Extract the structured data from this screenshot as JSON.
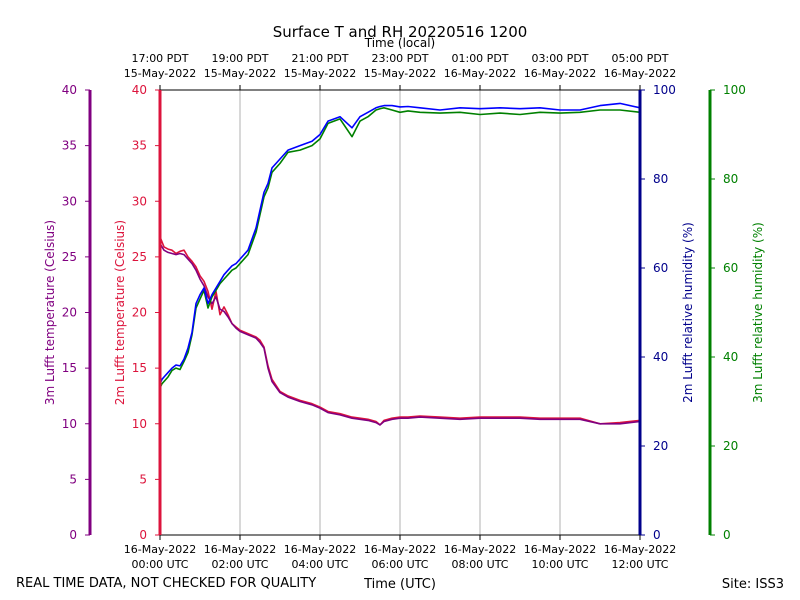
{
  "chart_data": {
    "type": "line",
    "title": "Surface T and RH 20220516 1200",
    "top_axis_title": "Time (local)",
    "xlabel": "Time (UTC)",
    "footer_left": "REAL TIME DATA, NOT CHECKED FOR QUALITY",
    "footer_right": "Site: ISS3",
    "colors": {
      "t3m": "#800080",
      "t2m": "#dc143c",
      "rh2m": "#0000ff",
      "rh3m": "#008000",
      "axis_t3m": "#800080",
      "axis_t2m": "#dc143c",
      "axis_rh2m": "#00008b",
      "axis_rh3m": "#008000",
      "grid": "#b0b0b0"
    },
    "x_range_hours": [
      0,
      12
    ],
    "bottom_ticks": [
      {
        "x": 0,
        "line1": "16-May-2022",
        "line2": "00:00 UTC"
      },
      {
        "x": 2,
        "line1": "16-May-2022",
        "line2": "02:00 UTC"
      },
      {
        "x": 4,
        "line1": "16-May-2022",
        "line2": "04:00 UTC"
      },
      {
        "x": 6,
        "line1": "16-May-2022",
        "line2": "06:00 UTC"
      },
      {
        "x": 8,
        "line1": "16-May-2022",
        "line2": "08:00 UTC"
      },
      {
        "x": 10,
        "line1": "16-May-2022",
        "line2": "10:00 UTC"
      },
      {
        "x": 12,
        "line1": "16-May-2022",
        "line2": "12:00 UTC"
      }
    ],
    "top_ticks": [
      {
        "x": 0,
        "line1": "17:00 PDT",
        "line2": "15-May-2022"
      },
      {
        "x": 2,
        "line1": "19:00 PDT",
        "line2": "15-May-2022"
      },
      {
        "x": 4,
        "line1": "21:00 PDT",
        "line2": "15-May-2022"
      },
      {
        "x": 6,
        "line1": "23:00 PDT",
        "line2": "15-May-2022"
      },
      {
        "x": 8,
        "line1": "01:00 PDT",
        "line2": "16-May-2022"
      },
      {
        "x": 10,
        "line1": "03:00 PDT",
        "line2": "16-May-2022"
      },
      {
        "x": 12,
        "line1": "05:00 PDT",
        "line2": "16-May-2022"
      }
    ],
    "axes": {
      "t3m": {
        "label": "3m Lufft temperature (Celsius)",
        "ylim": [
          0,
          40
        ],
        "ticks": [
          "0",
          "5",
          "10",
          "15",
          "20",
          "25",
          "30",
          "35",
          "40"
        ]
      },
      "t2m": {
        "label": "2m Lufft temperature (Celsius)",
        "ylim": [
          0,
          40
        ],
        "ticks": [
          "0",
          "5",
          "10",
          "15",
          "20",
          "25",
          "30",
          "35",
          "40"
        ]
      },
      "rh2m": {
        "label": "2m Lufft relative humidity (%)",
        "ylim": [
          0,
          100
        ],
        "ticks": [
          "0",
          "20",
          "40",
          "60",
          "80",
          "100"
        ]
      },
      "rh3m": {
        "label": "3m Lufft relative humidity (%)",
        "ylim": [
          0,
          100
        ],
        "ticks": [
          "0",
          "20",
          "40",
          "60",
          "80",
          "100"
        ]
      }
    },
    "series": [
      {
        "key": "t2m",
        "name": "2m Lufft temperature",
        "axis": "t2m",
        "x": [
          0,
          0.1,
          0.2,
          0.3,
          0.4,
          0.5,
          0.6,
          0.7,
          0.8,
          0.9,
          1.0,
          1.1,
          1.2,
          1.3,
          1.4,
          1.5,
          1.6,
          1.7,
          1.8,
          1.9,
          2.0,
          2.2,
          2.4,
          2.5,
          2.6,
          2.7,
          2.8,
          3.0,
          3.2,
          3.5,
          3.8,
          4.0,
          4.2,
          4.5,
          4.8,
          5.0,
          5.2,
          5.4,
          5.5,
          5.6,
          5.8,
          6.0,
          6.2,
          6.5,
          7.0,
          7.5,
          8.0,
          8.5,
          9.0,
          9.5,
          10.0,
          10.5,
          11.0,
          11.5,
          12.0
        ],
        "y": [
          26.8,
          25.9,
          25.7,
          25.6,
          25.3,
          25.5,
          25.6,
          25.0,
          24.6,
          24.1,
          23.3,
          22.8,
          21.9,
          20.3,
          21.9,
          19.8,
          20.5,
          19.8,
          19.0,
          18.7,
          18.4,
          18.1,
          17.8,
          17.5,
          16.9,
          15.2,
          14.0,
          12.9,
          12.5,
          12.1,
          11.8,
          11.5,
          11.1,
          10.9,
          10.6,
          10.5,
          10.4,
          10.2,
          9.9,
          10.3,
          10.5,
          10.6,
          10.6,
          10.7,
          10.6,
          10.5,
          10.6,
          10.6,
          10.6,
          10.5,
          10.5,
          10.5,
          10.0,
          10.1,
          10.3
        ]
      },
      {
        "key": "t3m",
        "name": "3m Lufft temperature",
        "axis": "t3m",
        "x": [
          0,
          0.1,
          0.2,
          0.3,
          0.4,
          0.5,
          0.6,
          0.7,
          0.8,
          0.9,
          1.0,
          1.1,
          1.2,
          1.3,
          1.4,
          1.5,
          1.6,
          1.7,
          1.8,
          1.9,
          2.0,
          2.2,
          2.4,
          2.5,
          2.6,
          2.7,
          2.8,
          3.0,
          3.2,
          3.5,
          3.8,
          4.0,
          4.2,
          4.5,
          4.8,
          5.0,
          5.2,
          5.4,
          5.5,
          5.6,
          5.8,
          6.0,
          6.2,
          6.5,
          7.0,
          7.5,
          8.0,
          8.5,
          9.0,
          9.5,
          10.0,
          10.5,
          11.0,
          11.5,
          12.0
        ],
        "y": [
          26.2,
          25.6,
          25.4,
          25.3,
          25.2,
          25.3,
          25.2,
          24.8,
          24.4,
          23.8,
          23.0,
          22.4,
          21.4,
          20.8,
          21.4,
          20.3,
          20.1,
          19.6,
          19.0,
          18.6,
          18.3,
          18.0,
          17.7,
          17.3,
          16.8,
          15.0,
          13.8,
          12.8,
          12.4,
          12.0,
          11.7,
          11.4,
          11.0,
          10.8,
          10.5,
          10.4,
          10.3,
          10.1,
          9.9,
          10.2,
          10.4,
          10.5,
          10.5,
          10.6,
          10.5,
          10.4,
          10.5,
          10.5,
          10.5,
          10.4,
          10.4,
          10.4,
          10.0,
          10.0,
          10.2
        ]
      },
      {
        "key": "rh3m",
        "name": "3m Lufft relative humidity",
        "axis": "rh3m",
        "x": [
          0,
          0.05,
          0.1,
          0.2,
          0.3,
          0.4,
          0.5,
          0.6,
          0.7,
          0.8,
          0.9,
          1.0,
          1.1,
          1.2,
          1.3,
          1.4,
          1.5,
          1.6,
          1.7,
          1.8,
          1.9,
          2.0,
          2.2,
          2.4,
          2.5,
          2.6,
          2.7,
          2.8,
          3.0,
          3.2,
          3.5,
          3.8,
          4.0,
          4.2,
          4.5,
          4.8,
          5.0,
          5.2,
          5.4,
          5.5,
          5.6,
          5.8,
          6.0,
          6.2,
          6.5,
          7.0,
          7.5,
          8.0,
          8.5,
          9.0,
          9.5,
          10.0,
          10.5,
          11.0,
          11.5,
          12.0
        ],
        "y": [
          33.0,
          34.0,
          34.5,
          35.5,
          37.0,
          37.5,
          37.2,
          39.0,
          41.0,
          45.0,
          51.0,
          53.0,
          55.0,
          51.0,
          53.5,
          55.0,
          56.5,
          57.5,
          58.5,
          59.5,
          60.0,
          61.0,
          63.0,
          68.0,
          72.0,
          76.0,
          78.0,
          81.5,
          83.5,
          86.0,
          86.5,
          87.5,
          89.0,
          92.5,
          93.5,
          89.5,
          93.0,
          94.0,
          95.5,
          95.8,
          96.0,
          95.5,
          95.0,
          95.3,
          95.0,
          94.8,
          95.0,
          94.5,
          94.8,
          94.5,
          95.0,
          94.8,
          95.0,
          95.5,
          95.5,
          95.0
        ]
      },
      {
        "key": "rh2m",
        "name": "2m Lufft relative humidity",
        "axis": "rh2m",
        "x": [
          0,
          0.05,
          0.1,
          0.2,
          0.3,
          0.4,
          0.5,
          0.6,
          0.7,
          0.8,
          0.9,
          1.0,
          1.1,
          1.2,
          1.3,
          1.4,
          1.5,
          1.6,
          1.7,
          1.8,
          1.9,
          2.0,
          2.2,
          2.4,
          2.5,
          2.6,
          2.7,
          2.8,
          3.0,
          3.2,
          3.5,
          3.8,
          4.0,
          4.2,
          4.5,
          4.8,
          5.0,
          5.2,
          5.4,
          5.5,
          5.6,
          5.8,
          6.0,
          6.2,
          6.5,
          7.0,
          7.5,
          8.0,
          8.5,
          9.0,
          9.5,
          10.0,
          10.5,
          11.0,
          11.5,
          12.0
        ],
        "y": [
          34.0,
          35.0,
          35.5,
          36.5,
          37.5,
          38.2,
          38.0,
          39.5,
          42.0,
          45.5,
          52.0,
          54.0,
          55.5,
          52.0,
          54.0,
          55.5,
          57.0,
          58.5,
          59.5,
          60.5,
          61.0,
          62.0,
          64.0,
          69.0,
          73.0,
          77.0,
          79.0,
          82.5,
          84.5,
          86.5,
          87.5,
          88.5,
          90.0,
          93.0,
          94.0,
          91.5,
          94.0,
          95.0,
          96.0,
          96.3,
          96.5,
          96.5,
          96.2,
          96.3,
          96.0,
          95.5,
          96.0,
          95.8,
          96.0,
          95.8,
          96.0,
          95.5,
          95.5,
          96.5,
          97.0,
          96.0
        ]
      }
    ]
  }
}
